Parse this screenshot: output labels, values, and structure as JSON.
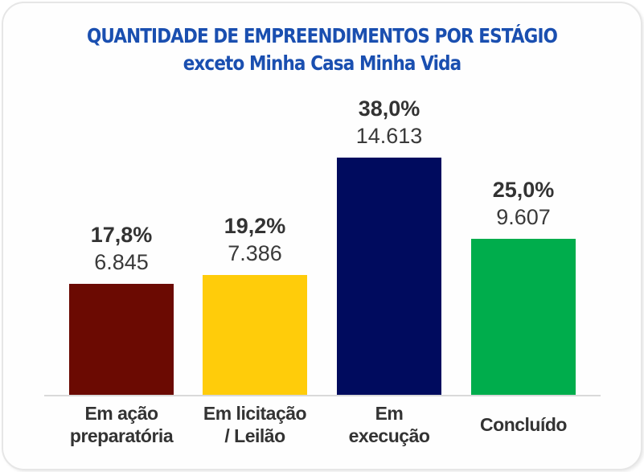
{
  "chart_data": {
    "type": "bar",
    "title": "QUANTIDADE DE EMPREENDIMENTOS POR ESTÁGIO",
    "subtitle": "exceto Minha Casa Minha Vida",
    "xlabel": "",
    "ylabel": "",
    "grid": false,
    "legend": "none",
    "categories": [
      "Em ação preparatória",
      "Em licitação / Leilão",
      "Em execução",
      "Concluído"
    ],
    "category_lines": [
      [
        "Em ação",
        "preparatória"
      ],
      [
        "Em licitação",
        "/ Leilão"
      ],
      [
        "Em",
        "execução"
      ],
      [
        "Concluído"
      ]
    ],
    "values": [
      6845,
      7386,
      14613,
      9607
    ],
    "value_labels": [
      "6.845",
      "7.386",
      "14.613",
      "9.607"
    ],
    "percentages": [
      17.8,
      19.2,
      38.0,
      25.0
    ],
    "percentage_labels": [
      "17,8%",
      "19,2%",
      "38,0%",
      "25,0%"
    ],
    "colors": [
      "#6b0a02",
      "#ffcc0a",
      "#000b5e",
      "#00ad4c"
    ]
  }
}
